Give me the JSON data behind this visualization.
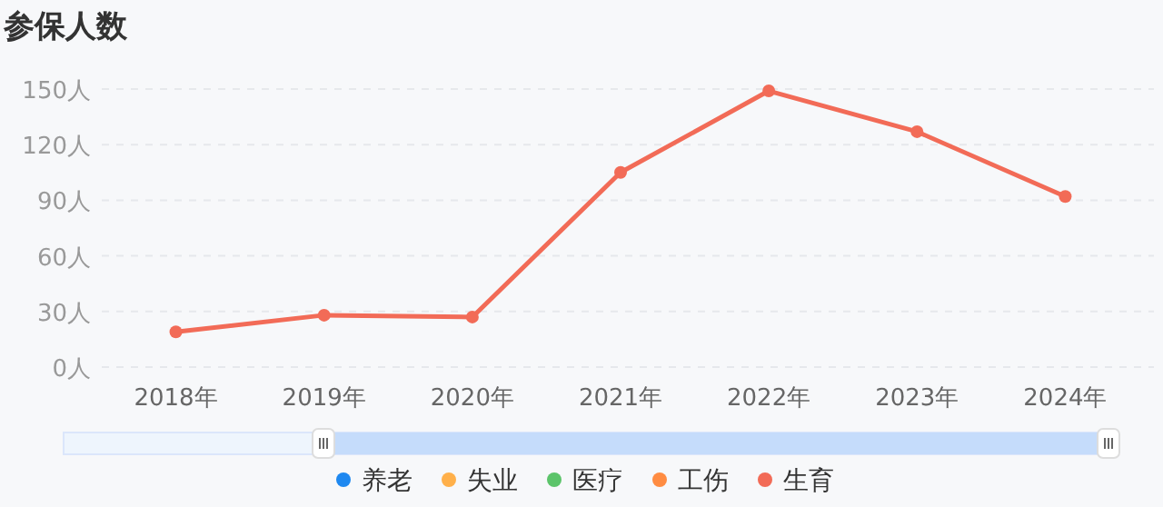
{
  "chart_data": {
    "type": "line",
    "title": "参保人数",
    "categories": [
      "2018年",
      "2019年",
      "2020年",
      "2021年",
      "2022年",
      "2023年",
      "2024年"
    ],
    "series": [
      {
        "name": "养老",
        "color": "#1e88f0",
        "values": [
          null,
          null,
          null,
          null,
          null,
          null,
          null
        ]
      },
      {
        "name": "失业",
        "color": "#ffb04a",
        "values": [
          null,
          null,
          null,
          null,
          null,
          null,
          null
        ]
      },
      {
        "name": "医疗",
        "color": "#5cc46a",
        "values": [
          null,
          null,
          null,
          null,
          null,
          null,
          null
        ]
      },
      {
        "name": "工伤",
        "color": "#ff8c42",
        "values": [
          null,
          null,
          null,
          null,
          null,
          null,
          null
        ]
      },
      {
        "name": "生育",
        "color": "#f26b57",
        "values": [
          19,
          28,
          27,
          105,
          149,
          127,
          92
        ]
      }
    ],
    "ylim": [
      0,
      150
    ],
    "yticks": [
      {
        "value": 0,
        "label": "0人"
      },
      {
        "value": 30,
        "label": "30人"
      },
      {
        "value": 60,
        "label": "60人"
      },
      {
        "value": 90,
        "label": "90人"
      },
      {
        "value": 120,
        "label": "120人"
      },
      {
        "value": 150,
        "label": "150人"
      }
    ],
    "grid": "y",
    "legend": "bottom",
    "marker": "circle",
    "line_style": "solid"
  }
}
